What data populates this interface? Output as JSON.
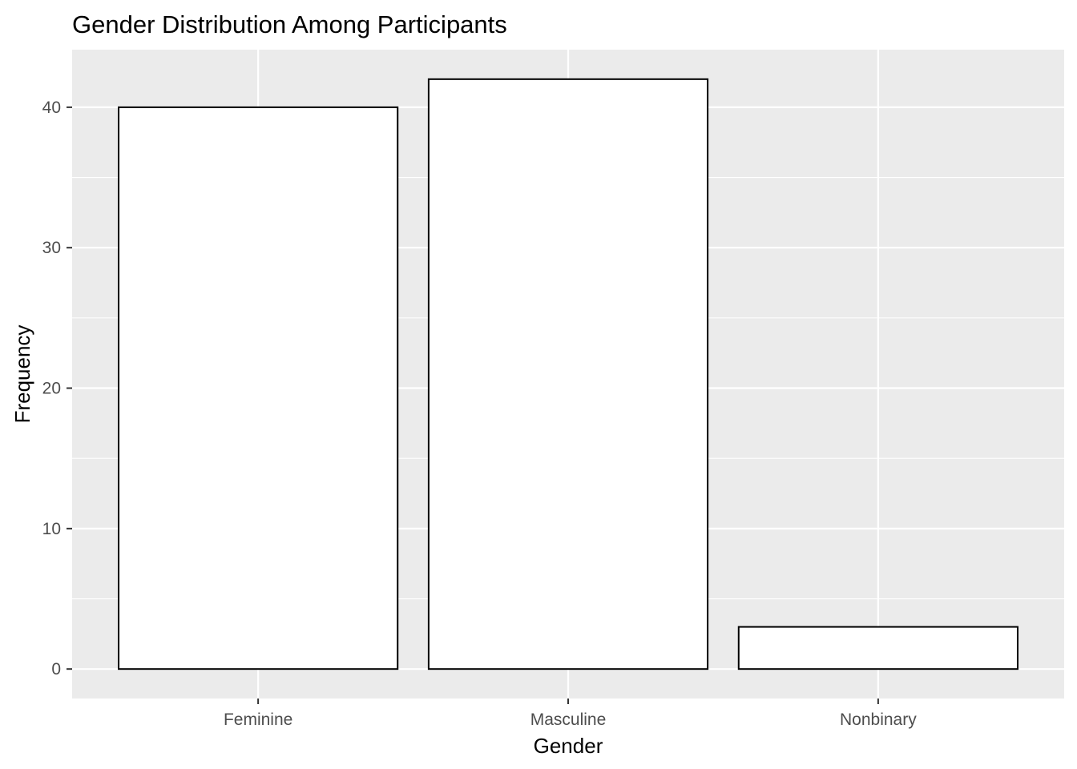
{
  "chart_data": {
    "type": "bar",
    "title": "Gender Distribution Among Participants",
    "xlabel": "Gender",
    "ylabel": "Frequency",
    "categories": [
      "Feminine",
      "Masculine",
      "Nonbinary"
    ],
    "values": [
      40,
      42,
      3
    ],
    "ylim": [
      -2.1,
      44.1
    ],
    "yticks": [
      0,
      10,
      20,
      30,
      40
    ],
    "ytick_labels": [
      "0",
      "10",
      "20",
      "30",
      "40"
    ],
    "grid": true,
    "legend": "none",
    "colors": {
      "panel_background": "#ebebeb",
      "grid": "#ffffff",
      "bar_fill": "#ffffff",
      "bar_outline": "#000000",
      "tick_label": "#4d4d4d",
      "tick_mark": "#333333"
    }
  }
}
